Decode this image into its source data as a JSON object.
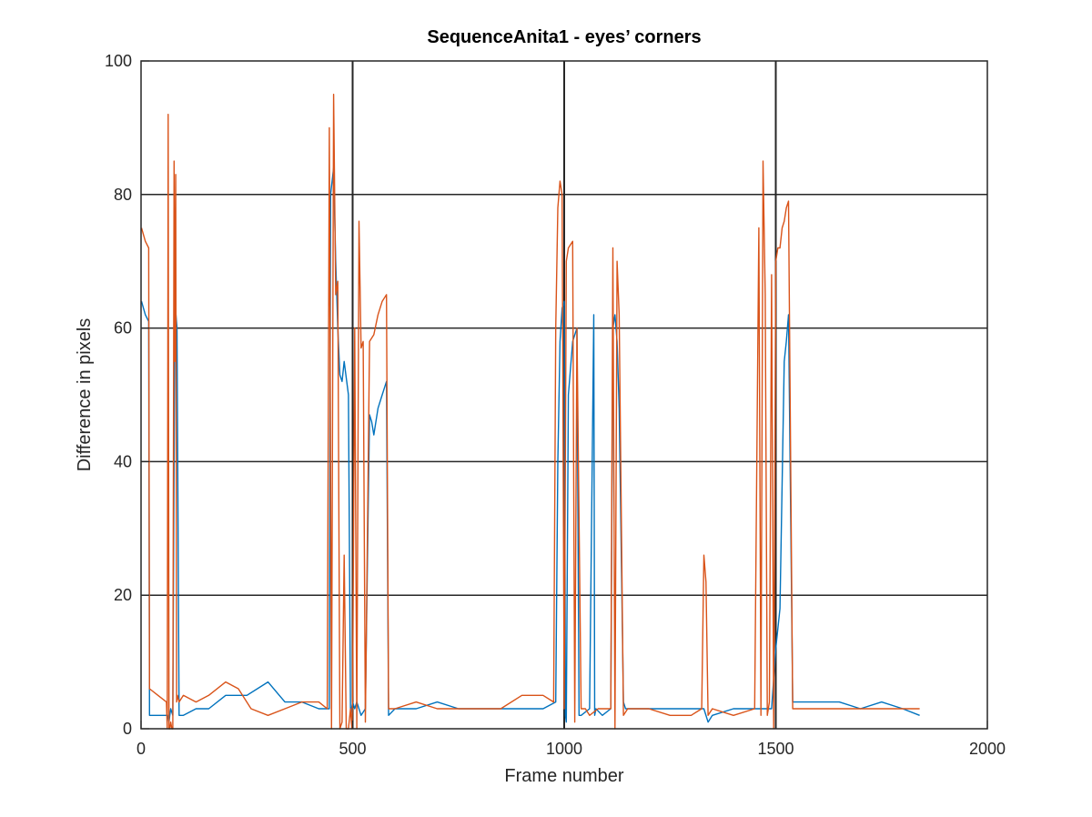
{
  "chart_data": {
    "type": "line",
    "title": "SequenceAnita1 - eyes’ corners",
    "xlabel": "Frame number",
    "ylabel": "Difference in pixels",
    "xlim": [
      0,
      2000
    ],
    "ylim": [
      0,
      100
    ],
    "xticks": [
      0,
      500,
      1000,
      1500,
      2000
    ],
    "yticks": [
      0,
      20,
      40,
      60,
      80,
      100
    ],
    "xtick_labels": [
      "0",
      "500",
      "1000",
      "1500",
      "2000"
    ],
    "ytick_labels": [
      "0",
      "20",
      "40",
      "60",
      "80",
      "100"
    ],
    "grid": true,
    "vertical_markers": [
      500,
      1000,
      1500
    ],
    "legend": "none",
    "series": [
      {
        "color": "#0072bd",
        "x": [
          1,
          10,
          18,
          20,
          40,
          60,
          64,
          66,
          68,
          70,
          75,
          80,
          85,
          90,
          100,
          130,
          160,
          200,
          250,
          300,
          340,
          380,
          420,
          445,
          448,
          455,
          460,
          465,
          470,
          475,
          480,
          490,
          495,
          500,
          505,
          510,
          520,
          530,
          540,
          545,
          550,
          560,
          570,
          580,
          585,
          600,
          650,
          700,
          750,
          800,
          850,
          900,
          950,
          980,
          985,
          990,
          995,
          1000,
          1003,
          1005,
          1010,
          1020,
          1030,
          1035,
          1040,
          1060,
          1070,
          1072,
          1075,
          1090,
          1110,
          1115,
          1120,
          1125,
          1130,
          1140,
          1145,
          1150,
          1200,
          1250,
          1300,
          1330,
          1340,
          1350,
          1400,
          1450,
          1480,
          1490,
          1500,
          1505,
          1510,
          1520,
          1525,
          1530,
          1540,
          1550,
          1600,
          1650,
          1700,
          1750,
          1800,
          1840
        ],
        "y": [
          64,
          62,
          61,
          2,
          2,
          2,
          2,
          1,
          2,
          3,
          2,
          64,
          60,
          2,
          2,
          3,
          3,
          5,
          5,
          7,
          4,
          4,
          3,
          3,
          80,
          84,
          70,
          60,
          53,
          52,
          55,
          50,
          2,
          4,
          3,
          4,
          2,
          3,
          47,
          46,
          44,
          48,
          50,
          52,
          2,
          3,
          3,
          4,
          3,
          3,
          3,
          3,
          3,
          4,
          40,
          58,
          63,
          64,
          2,
          1,
          50,
          58,
          60,
          2,
          2,
          3,
          62,
          2,
          3,
          2,
          3,
          60,
          62,
          58,
          48,
          4,
          3,
          3,
          3,
          3,
          3,
          3,
          1,
          2,
          3,
          3,
          3,
          3,
          12,
          15,
          18,
          55,
          58,
          62,
          4,
          4,
          4,
          4,
          3,
          4,
          3,
          2
        ]
      },
      {
        "color": "#d95319",
        "x": [
          1,
          10,
          18,
          20,
          40,
          60,
          62,
          64,
          66,
          68,
          70,
          73,
          75,
          78,
          80,
          82,
          84,
          86,
          90,
          100,
          130,
          160,
          200,
          230,
          260,
          300,
          340,
          380,
          420,
          440,
          445,
          450,
          455,
          460,
          465,
          470,
          475,
          480,
          485,
          490,
          495,
          498,
          500,
          505,
          510,
          515,
          520,
          525,
          530,
          540,
          550,
          560,
          570,
          580,
          585,
          600,
          650,
          700,
          750,
          800,
          850,
          900,
          950,
          975,
          980,
          985,
          990,
          995,
          1000,
          1005,
          1010,
          1020,
          1025,
          1030,
          1040,
          1045,
          1050,
          1060,
          1080,
          1100,
          1110,
          1115,
          1120,
          1125,
          1130,
          1140,
          1150,
          1200,
          1250,
          1300,
          1325,
          1330,
          1335,
          1340,
          1350,
          1400,
          1450,
          1460,
          1465,
          1470,
          1475,
          1480,
          1485,
          1490,
          1495,
          1500,
          1505,
          1510,
          1515,
          1520,
          1525,
          1530,
          1540,
          1600,
          1650,
          1700,
          1750,
          1800,
          1840
        ],
        "y": [
          75,
          73,
          72,
          6,
          5,
          4,
          0,
          92,
          0,
          0,
          1,
          0,
          0,
          85,
          55,
          83,
          4,
          5,
          4,
          5,
          4,
          5,
          7,
          6,
          3,
          2,
          3,
          4,
          4,
          3,
          90,
          0,
          95,
          65,
          67,
          0,
          1,
          26,
          0,
          0,
          3,
          0,
          5,
          60,
          0,
          76,
          57,
          58,
          1,
          58,
          59,
          62,
          64,
          65,
          3,
          3,
          4,
          3,
          3,
          3,
          3,
          5,
          5,
          4,
          60,
          78,
          82,
          80,
          3,
          70,
          72,
          73,
          1,
          60,
          3,
          3,
          3,
          2,
          3,
          3,
          3,
          72,
          0,
          70,
          62,
          2,
          3,
          3,
          2,
          2,
          3,
          26,
          22,
          2,
          3,
          2,
          3,
          75,
          2,
          85,
          65,
          2,
          4,
          68,
          0,
          70,
          72,
          72,
          75,
          76,
          78,
          79,
          3,
          3,
          3,
          3,
          3,
          3,
          3
        ]
      }
    ]
  }
}
